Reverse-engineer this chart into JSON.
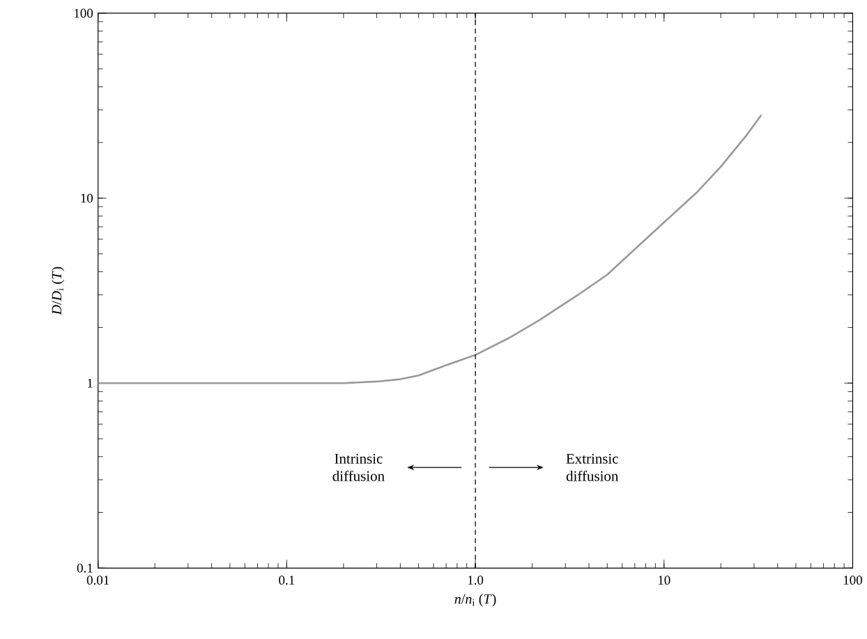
{
  "chart_data": {
    "type": "line",
    "log": "xy",
    "xlabel": "*n*/*n*$_{i}$ (*T*)",
    "ylabel": "*D*/*D*$_{i}$ (*T*)",
    "xlim": [
      0.01,
      100
    ],
    "ylim": [
      0.1,
      100
    ],
    "xticks": [
      0.01,
      0.1,
      {
        "value": 1,
        "label": "1.0"
      },
      10,
      100
    ],
    "yticks": [
      0.1,
      1,
      10,
      100
    ],
    "series": [
      {
        "color": "#999999",
        "x": [
          0.01,
          0.05,
          0.1,
          0.2,
          0.3,
          0.4,
          0.5,
          0.7,
          1.0,
          1.5,
          2.2,
          3.5,
          5,
          7,
          10,
          15,
          20,
          27,
          32.8
        ],
        "values": [
          1.0,
          1.0,
          1.0,
          1.0,
          1.02,
          1.05,
          1.1,
          1.25,
          1.42,
          1.75,
          2.2,
          3.0,
          3.86,
          5.3,
          7.4,
          10.8,
          14.8,
          21.5,
          28.2
        ]
      }
    ],
    "ref_lines": [
      {
        "axis": "x",
        "value": 1,
        "line_style": "dashed",
        "color": "#000000"
      }
    ],
    "annotations": [
      "Intrinsic diffusion",
      "Extrinsic diffusion"
    ],
    "marker": "none",
    "line_style": "solid",
    "grid": false,
    "legend": false
  }
}
